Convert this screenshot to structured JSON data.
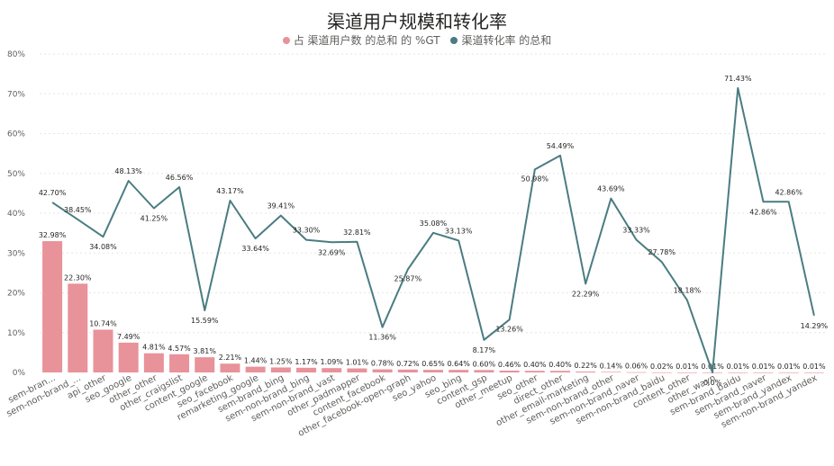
{
  "title": "渠道用户规模和转化率",
  "chart_data": {
    "type": "bar",
    "title": "渠道用户规模和转化率",
    "categories": [
      "sem-bran...",
      "sem-non-brand_...",
      "api_other",
      "seo_google",
      "other_other",
      "other_craigslist",
      "content_google",
      "seo_facebook",
      "remarketing_google",
      "sem-brand_bing",
      "sem-non-brand_bing",
      "sem-non-brand_vast",
      "other_padmapper",
      "content_facebook",
      "other_facebook-open-graph",
      "seo_yahoo",
      "seo_bing",
      "content_gsp",
      "other_meetup",
      "seo_other",
      "direct_other",
      "other_email-marketing",
      "sem-non-brand_other",
      "sem-non-brand_naver",
      "sem-non-brand_baidu",
      "content_other",
      "other_wayn",
      "sem-brand_baidu",
      "sem-brand_naver",
      "sem-brand_yandex",
      "sem-non-brand_yandex"
    ],
    "series": [
      {
        "name": "占 渠道用户数 的总和 的 %GT",
        "type": "bar",
        "color": "#e8929a",
        "values": [
          32.98,
          22.3,
          10.74,
          7.49,
          4.81,
          4.57,
          3.81,
          2.21,
          1.44,
          1.25,
          1.17,
          1.09,
          1.01,
          0.78,
          0.72,
          0.65,
          0.64,
          0.6,
          0.46,
          0.4,
          0.4,
          0.22,
          0.14,
          0.06,
          0.02,
          0.01,
          0.01,
          0.01,
          0.01,
          0.01,
          0.01
        ],
        "labels": [
          "32.98%",
          "22.30%",
          "10.74%",
          "7.49%",
          "4.81%",
          "4.57%",
          "3.81%",
          "2.21%",
          "1.44%",
          "1.25%",
          "1.17%",
          "1.09%",
          "1.01%",
          "0.78%",
          "0.72%",
          "0.65%",
          "0.64%",
          "0.60%",
          "0.46%",
          "0.40%",
          "0.40%",
          "0.22%",
          "0.14%",
          "0.06%",
          "0.02%",
          "0.01%",
          "0.01%",
          "0.01%",
          "0.01%",
          "0.01%",
          "0.01%"
        ]
      },
      {
        "name": "渠道转化率 的总和",
        "type": "line",
        "color": "#4a7c82",
        "values": [
          42.7,
          38.45,
          34.08,
          48.13,
          41.25,
          46.56,
          15.59,
          43.17,
          33.64,
          39.41,
          33.3,
          32.69,
          32.81,
          11.36,
          25.87,
          35.08,
          33.13,
          8.17,
          13.26,
          50.98,
          54.49,
          22.29,
          43.69,
          33.33,
          27.78,
          18.18,
          0.0,
          71.43,
          42.86,
          42.86,
          14.29
        ],
        "labels": [
          "42.70%",
          "38.45%",
          "34.08%",
          "48.13%",
          "41.25%",
          "46.56%",
          "15.59%",
          "43.17%",
          "33.64%",
          "39.41%",
          "33.30%",
          "32.69%",
          "32.81%",
          "11.36%",
          "25.87%",
          "35.08%",
          "33.13%",
          "8.17%",
          "13.26%",
          "50.98%",
          "54.49%",
          "22.29%",
          "43.69%",
          "33.33%",
          "27.78%",
          "18.18%",
          "0.0%",
          "71.43%",
          "42.86%",
          "42.86%",
          "14.29%"
        ]
      }
    ],
    "ylim": [
      0,
      80
    ],
    "yticks": [
      "0%",
      "10%",
      "20%",
      "30%",
      "40%",
      "50%",
      "60%",
      "70%",
      "80%"
    ],
    "grid": true,
    "legend_position": "top-center"
  }
}
